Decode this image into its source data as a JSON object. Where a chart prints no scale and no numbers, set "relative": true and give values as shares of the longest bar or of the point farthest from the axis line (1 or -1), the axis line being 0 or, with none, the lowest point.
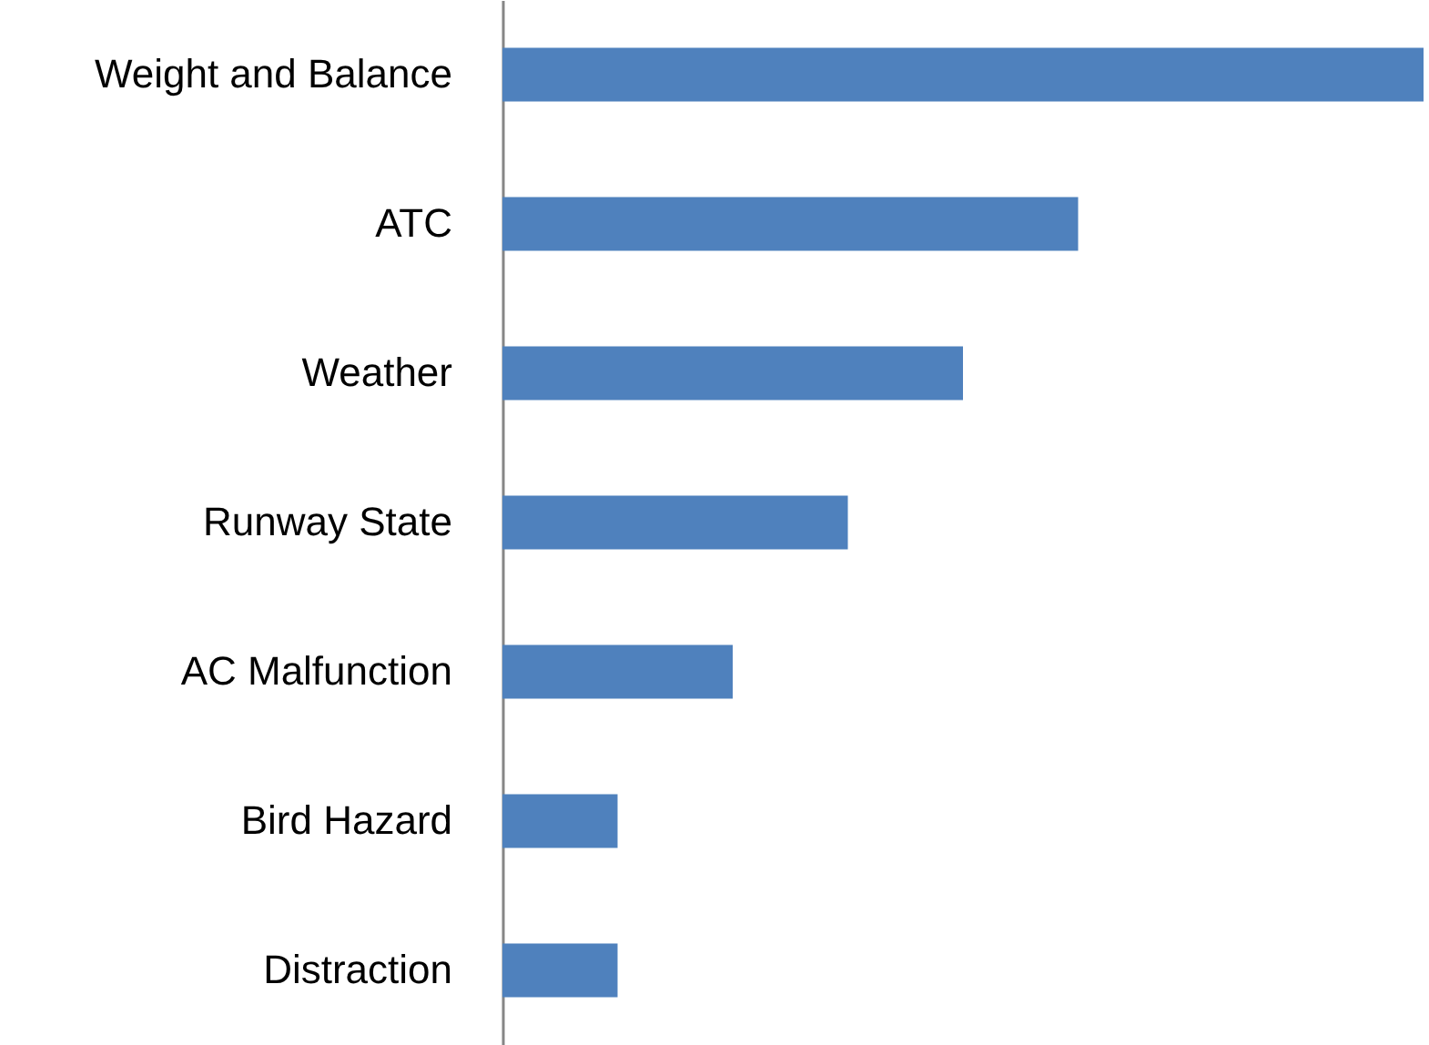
{
  "chart_data": {
    "type": "bar",
    "orientation": "horizontal",
    "relative": true,
    "categories": [
      "Weight and Balance",
      "ATC",
      "Weather",
      "Runway State",
      "AC Malfunction",
      "Bird Hazard",
      "Distraction"
    ],
    "values": [
      1,
      0.625,
      0.5,
      0.375,
      0.25,
      0.125,
      0.125
    ],
    "color": "#4f81bd"
  }
}
